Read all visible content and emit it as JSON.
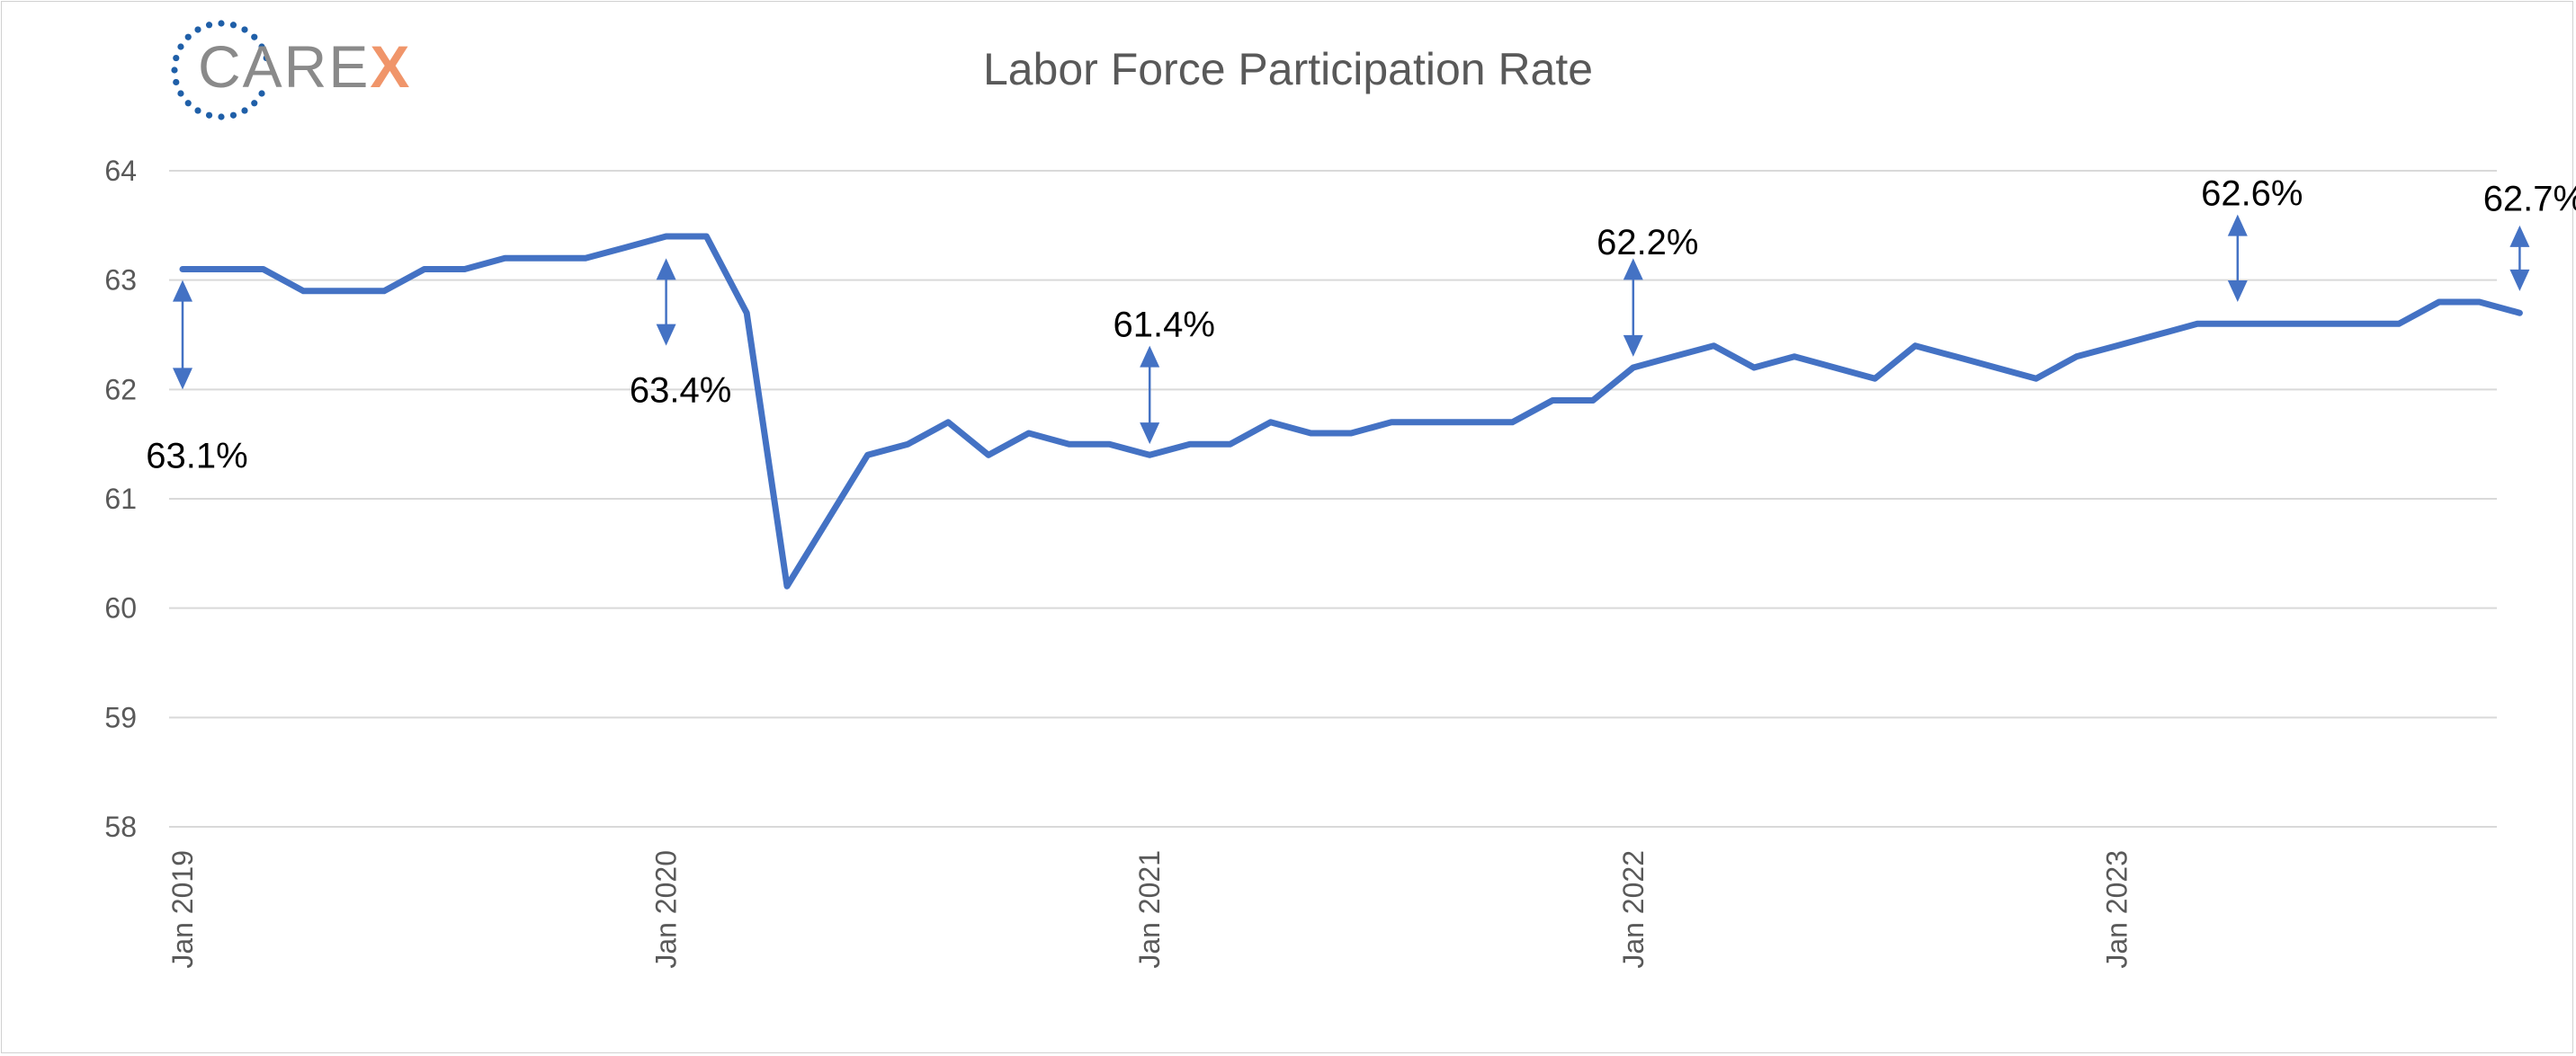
{
  "logo": {
    "text_main": "CARE",
    "text_accent": "X"
  },
  "colors": {
    "line": "#4472c4",
    "grid": "#d9d9d9",
    "text": "#595959",
    "logo_dots": "#1f5fa8",
    "logo_accent": "#f0956a"
  },
  "chart_data": {
    "type": "line",
    "title": "Labor Force Participation Rate",
    "xlabel": "",
    "ylabel": "",
    "ylim": [
      58,
      64
    ],
    "yticks": [
      58,
      59,
      60,
      61,
      62,
      63,
      64
    ],
    "x_tick_labels": [
      {
        "label": "Jan 2019",
        "index": 0
      },
      {
        "label": "Jan 2020",
        "index": 12
      },
      {
        "label": "Jan 2021",
        "index": 24
      },
      {
        "label": "Jan 2022",
        "index": 36
      },
      {
        "label": "Jan 2023",
        "index": 48
      }
    ],
    "grid": true,
    "series": [
      {
        "start": "2019-01",
        "values": [
          63.1,
          63.1,
          63.1,
          62.9,
          62.9,
          62.9,
          63.1,
          63.1,
          63.2,
          63.2,
          63.2,
          63.3,
          63.4,
          63.4,
          62.7,
          60.2,
          60.8,
          61.4,
          61.5,
          61.7,
          61.4,
          61.6,
          61.5,
          61.5,
          61.4,
          61.5,
          61.5,
          61.7,
          61.6,
          61.6,
          61.7,
          61.7,
          61.7,
          61.7,
          61.9,
          61.9,
          62.2,
          62.3,
          62.4,
          62.2,
          62.3,
          62.2,
          62.1,
          62.4,
          62.3,
          62.2,
          62.1,
          62.3,
          62.4,
          62.5,
          62.6,
          62.6,
          62.6,
          62.6,
          62.6,
          62.6,
          62.8,
          62.8,
          62.7
        ]
      }
    ],
    "annotations": [
      {
        "label": "63.1%",
        "index": 0,
        "arrow_from": 63.0,
        "arrow_to": 62.0,
        "text_value": 61.4
      },
      {
        "label": "63.4%",
        "index": 12,
        "arrow_from": 63.2,
        "arrow_to": 62.4,
        "text_value": 62.0
      },
      {
        "label": "61.4%",
        "index": 24,
        "arrow_from": 62.4,
        "arrow_to": 61.5,
        "text_value": 62.6
      },
      {
        "label": "62.2%",
        "index": 36,
        "arrow_from": 63.2,
        "arrow_to": 62.3,
        "text_value": 63.35
      },
      {
        "label": "62.6%",
        "index": 51,
        "arrow_from": 63.6,
        "arrow_to": 62.8,
        "text_value": 63.8
      },
      {
        "label": "62.7%",
        "index": 58,
        "arrow_from": 63.5,
        "arrow_to": 62.9,
        "text_value": 63.75
      }
    ]
  }
}
